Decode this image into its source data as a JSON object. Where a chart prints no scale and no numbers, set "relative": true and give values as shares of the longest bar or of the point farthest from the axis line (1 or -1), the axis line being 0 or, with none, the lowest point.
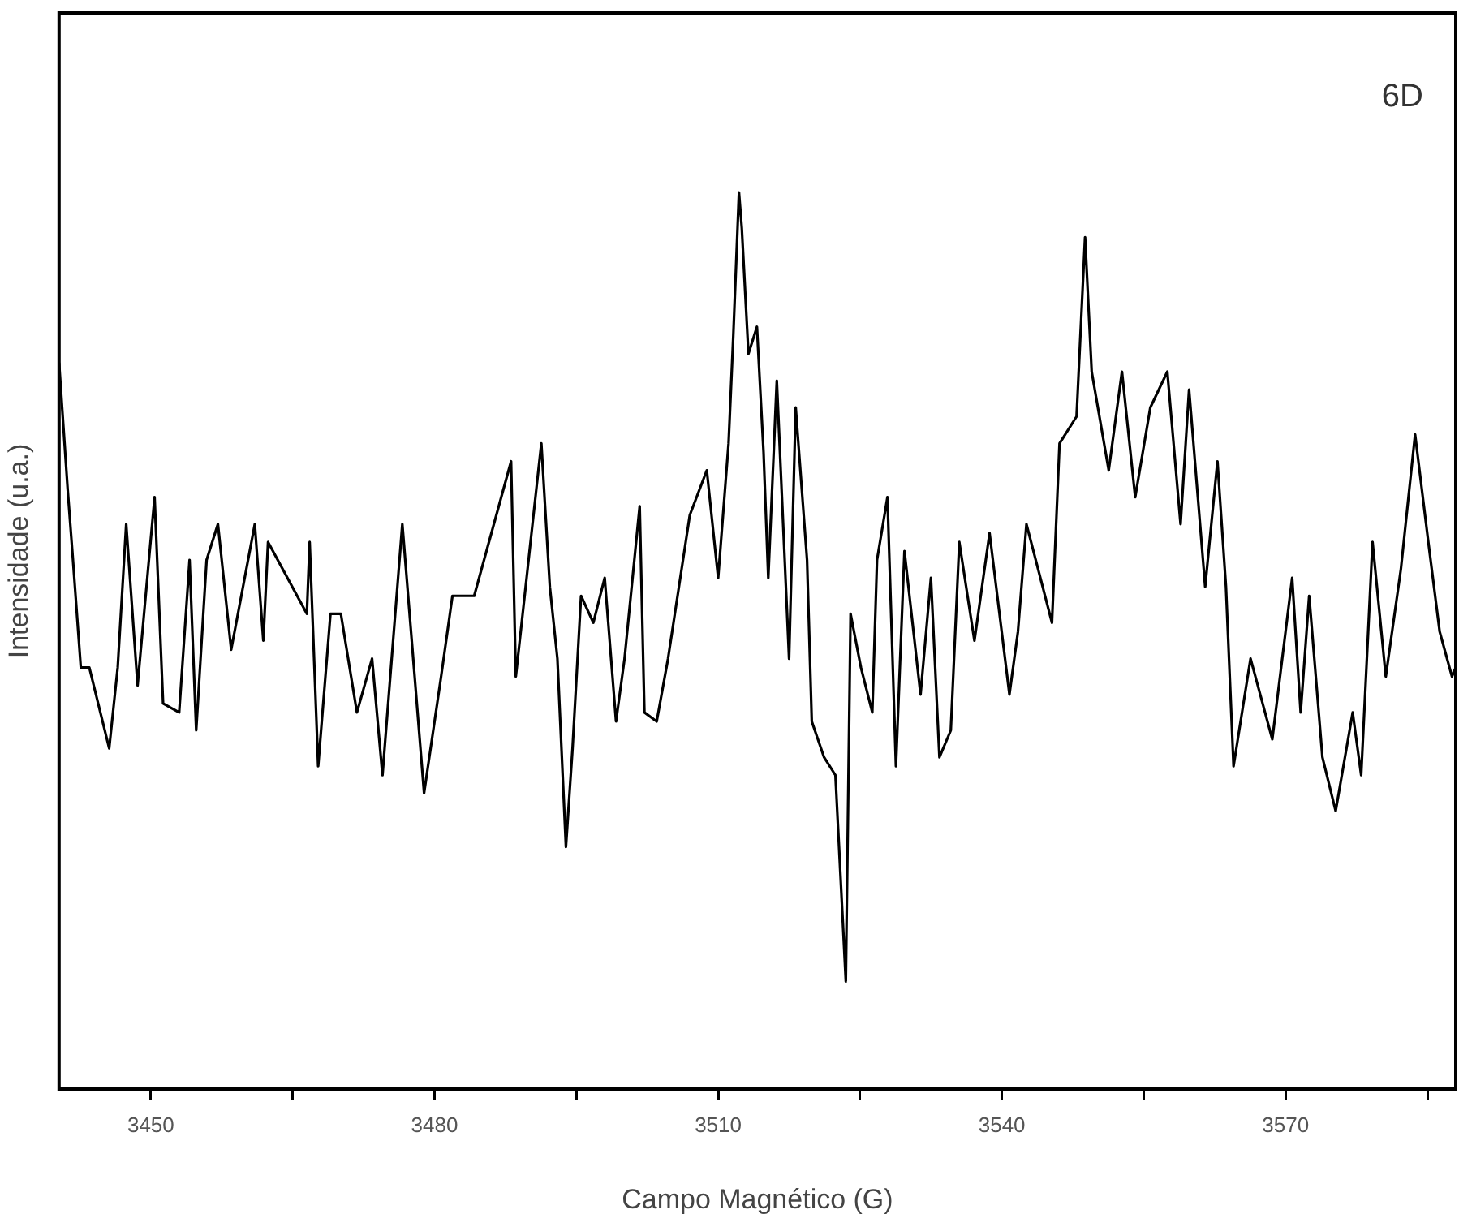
{
  "chart_data": {
    "type": "line",
    "relative": true,
    "xlabel": "Campo Magnético (G)",
    "ylabel": "Intensidade (u.a.)",
    "annotations": [
      "6D"
    ],
    "xlim": [
      3440.3,
      3588
    ],
    "xticks": [
      3450,
      {
        "value": 3465,
        "label": null
      },
      3480,
      {
        "value": 3495,
        "label": null
      },
      3510,
      {
        "value": 3525,
        "label": null
      },
      3540,
      {
        "value": 3555,
        "label": null
      },
      3570,
      {
        "value": 3585,
        "label": null
      }
    ],
    "grid": false,
    "legend": false,
    "marker": "none",
    "line_style": "solid",
    "series": [
      {
        "color": "#000000",
        "x": [
          3440.3,
          3441.2,
          3441.7,
          3442.6,
          3443.5,
          3445.6,
          3446.5,
          3447.4,
          3448.6,
          3450.4,
          3451.3,
          3453.0,
          3454.1,
          3454.8,
          3455.9,
          3457.1,
          3458.5,
          3461.0,
          3461.9,
          3462.4,
          3466.5,
          3466.8,
          3467.7,
          3469.0,
          3470.1,
          3471.8,
          3473.4,
          3474.5,
          3476.6,
          3478.9,
          3480.7,
          3481.9,
          3484.2,
          3488.1,
          3488.6,
          3491.3,
          3492.2,
          3493.0,
          3493.9,
          3494.6,
          3495.5,
          3496.8,
          3498.0,
          3499.2,
          3500.1,
          3501.7,
          3502.2,
          3503.5,
          3504.7,
          3507.0,
          3508.8,
          3510.0,
          3511.1,
          3511.6,
          3512.2,
          3512.5,
          3513.2,
          3514.1,
          3514.8,
          3515.3,
          3516.2,
          3517.5,
          3518.2,
          3519.4,
          3519.9,
          3521.2,
          3522.4,
          3523.5,
          3524.0,
          3525.1,
          3526.3,
          3526.8,
          3527.9,
          3528.8,
          3529.7,
          3531.4,
          3532.5,
          3533.4,
          3534.6,
          3535.5,
          3537.1,
          3538.7,
          3540.8,
          3541.7,
          3542.6,
          3545.3,
          3546.1,
          3547.9,
          3548.8,
          3549.5,
          3551.3,
          3552.7,
          3554.1,
          3555.7,
          3557.5,
          3558.9,
          3559.8,
          3561.5,
          3562.8,
          3563.7,
          3564.5,
          3566.3,
          3568.6,
          3570.7,
          3571.6,
          3572.5,
          3573.9,
          3575.3,
          3577.1,
          3578.0,
          3579.2,
          3580.6,
          3582.2,
          3583.7,
          3585.1,
          3586.3,
          3587.6,
          3588.0
        ],
        "values": [
          0.81,
          0.67,
          0.6,
          0.47,
          0.47,
          0.38,
          0.47,
          0.63,
          0.45,
          0.66,
          0.43,
          0.42,
          0.59,
          0.4,
          0.59,
          0.63,
          0.49,
          0.63,
          0.5,
          0.61,
          0.53,
          0.61,
          0.36,
          0.53,
          0.53,
          0.42,
          0.48,
          0.35,
          0.63,
          0.33,
          0.46,
          0.55,
          0.55,
          0.7,
          0.46,
          0.72,
          0.56,
          0.48,
          0.27,
          0.38,
          0.55,
          0.52,
          0.57,
          0.41,
          0.48,
          0.65,
          0.42,
          0.41,
          0.48,
          0.64,
          0.69,
          0.57,
          0.72,
          0.84,
          1.0,
          0.96,
          0.82,
          0.85,
          0.71,
          0.57,
          0.79,
          0.48,
          0.76,
          0.59,
          0.41,
          0.37,
          0.35,
          0.12,
          0.53,
          0.47,
          0.42,
          0.59,
          0.66,
          0.36,
          0.6,
          0.44,
          0.57,
          0.37,
          0.4,
          0.61,
          0.5,
          0.62,
          0.44,
          0.51,
          0.63,
          0.52,
          0.72,
          0.75,
          0.95,
          0.8,
          0.69,
          0.8,
          0.66,
          0.76,
          0.8,
          0.63,
          0.78,
          0.56,
          0.7,
          0.56,
          0.36,
          0.48,
          0.39,
          0.57,
          0.42,
          0.55,
          0.37,
          0.31,
          0.42,
          0.35,
          0.61,
          0.46,
          0.58,
          0.73,
          0.61,
          0.51,
          0.46,
          0.47
        ]
      }
    ]
  }
}
